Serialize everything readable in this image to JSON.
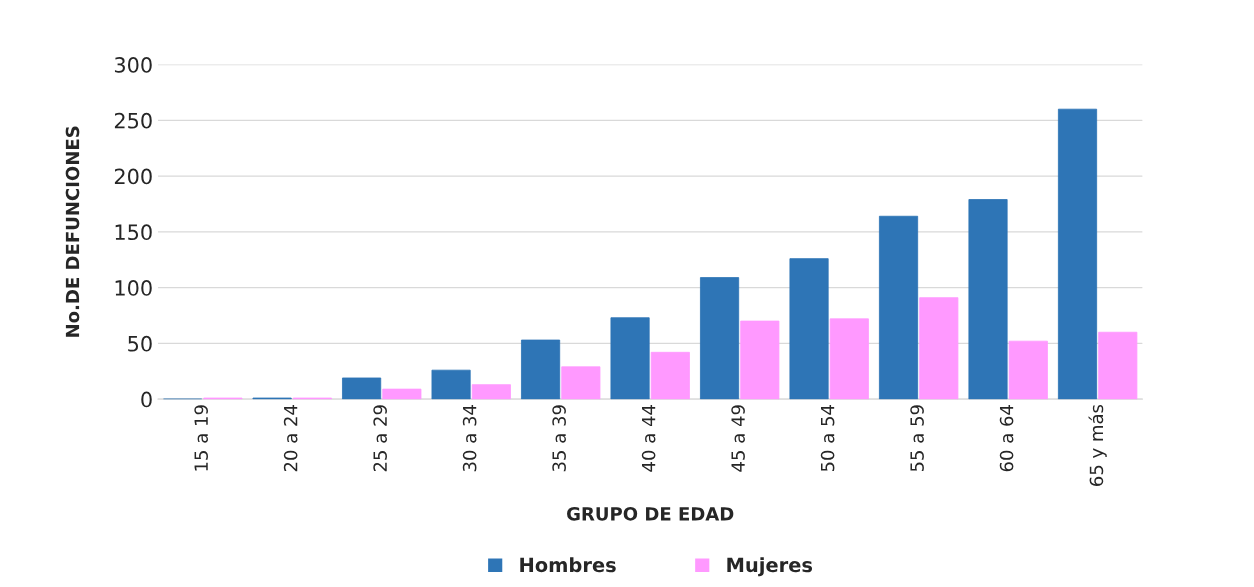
{
  "chart_data": {
    "type": "bar",
    "xlabel": "GRUPO DE EDAD",
    "ylabel": "No.DE DEFUNCIONES",
    "categories": [
      "15 a 19",
      "20 a 24",
      "25 a 29",
      "30 a 34",
      "35 a 39",
      "40 a 44",
      "45 a 49",
      "50 a 54",
      "55 a 59",
      "60 a 64",
      "65 y más"
    ],
    "series": [
      {
        "name": "Hombres",
        "color": "#2e75b6",
        "values": [
          0,
          1,
          19,
          26,
          53,
          73,
          109,
          126,
          164,
          179,
          260
        ]
      },
      {
        "name": "Mujeres",
        "color": "#ff99ff",
        "values": [
          1,
          1,
          9,
          13,
          29,
          42,
          70,
          72,
          91,
          52,
          60
        ]
      }
    ],
    "ylim": [
      0,
      300
    ],
    "yticks": [
      0,
      50,
      100,
      150,
      200,
      250,
      300
    ],
    "grid": "y",
    "legend": "bottom"
  }
}
